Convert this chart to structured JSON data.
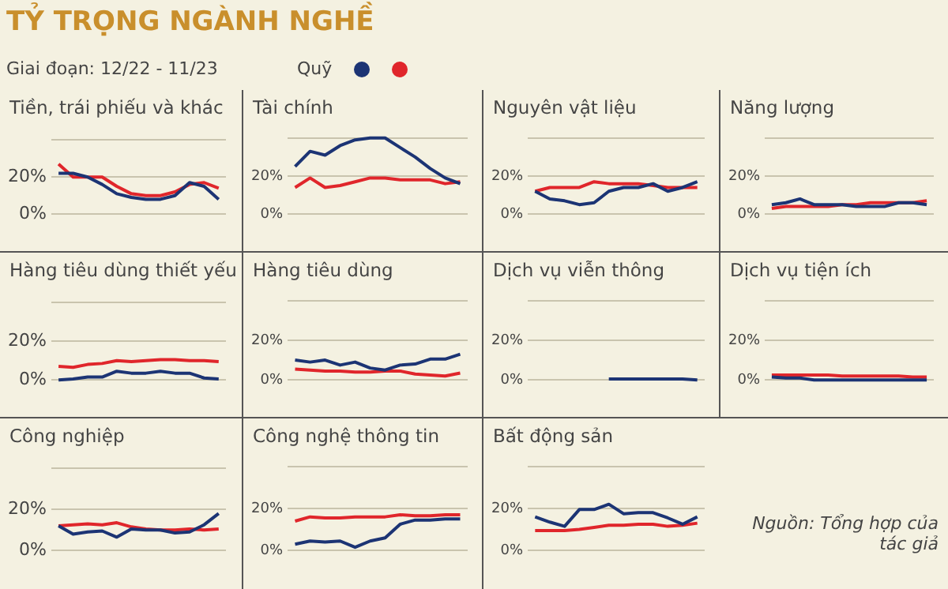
{
  "chart_data": [
    {
      "type": "other",
      "title": "TỶ TRỌNG NGÀNH NGHỀ",
      "subtitle": "Giai đoạn: 12/22 - 11/23"
    },
    {
      "type": "line",
      "title": "Tiền, trái phiếu và khác",
      "legend_title": "Quỹ",
      "categories": [
        null,
        null,
        null,
        null,
        null,
        null,
        null,
        null,
        null,
        null,
        null,
        null
      ],
      "ylim": [
        0,
        40
      ],
      "yticks": [
        {
          "value": 0,
          "label": "0%"
        },
        {
          "value": 20,
          "label": "20%"
        },
        {
          "value": 40,
          "label": null
        }
      ],
      "grid": "y",
      "series": [
        {
          "color": "#1c3474",
          "values": [
            22,
            22,
            20,
            16,
            11,
            9,
            8,
            8,
            10,
            17,
            15,
            8
          ]
        },
        {
          "color": "#e0262b",
          "values": [
            27,
            20,
            20,
            20,
            15,
            11,
            10,
            10,
            12,
            16,
            17,
            14
          ]
        }
      ]
    },
    {
      "type": "line",
      "title": "Tài chính",
      "categories": [
        null,
        null,
        null,
        null,
        null,
        null,
        null,
        null,
        null,
        null,
        null,
        null
      ],
      "ylim": [
        0,
        40
      ],
      "yticks": [
        {
          "value": 0,
          "label": "0%"
        },
        {
          "value": 20,
          "label": "20%"
        },
        {
          "value": 40,
          "label": null
        }
      ],
      "grid": "y",
      "series": [
        {
          "color": "#1c3474",
          "values": [
            25,
            33,
            31,
            36,
            39,
            40,
            40,
            35,
            30,
            24,
            19,
            16
          ]
        },
        {
          "color": "#e0262b",
          "values": [
            14,
            19,
            14,
            15,
            17,
            19,
            19,
            18,
            18,
            18,
            16,
            17
          ]
        }
      ]
    },
    {
      "type": "line",
      "title": "Nguyên vật liệu",
      "categories": [
        null,
        null,
        null,
        null,
        null,
        null,
        null,
        null,
        null,
        null,
        null,
        null
      ],
      "ylim": [
        0,
        40
      ],
      "yticks": [
        {
          "value": 0,
          "label": "0%"
        },
        {
          "value": 20,
          "label": "20%"
        },
        {
          "value": 40,
          "label": null
        }
      ],
      "grid": "y",
      "series": [
        {
          "color": "#1c3474",
          "values": [
            12,
            8,
            7,
            5,
            6,
            12,
            14,
            14,
            16,
            12,
            14,
            17
          ]
        },
        {
          "color": "#e0262b",
          "values": [
            12,
            14,
            14,
            14,
            17,
            16,
            16,
            16,
            15,
            14,
            14,
            14
          ]
        }
      ]
    },
    {
      "type": "line",
      "title": "Năng lượng",
      "categories": [
        null,
        null,
        null,
        null,
        null,
        null,
        null,
        null,
        null,
        null,
        null,
        null
      ],
      "ylim": [
        0,
        40
      ],
      "yticks": [
        {
          "value": 0,
          "label": "0%"
        },
        {
          "value": 20,
          "label": "20%"
        },
        {
          "value": 40,
          "label": null
        }
      ],
      "grid": "y",
      "series": [
        {
          "color": "#1c3474",
          "values": [
            5,
            6,
            8,
            5,
            5,
            5,
            4,
            4,
            4,
            6,
            6,
            5
          ]
        },
        {
          "color": "#e0262b",
          "values": [
            3,
            4,
            4,
            4,
            4,
            5,
            5,
            6,
            6,
            6,
            6,
            7
          ]
        }
      ]
    },
    {
      "type": "line",
      "title": "Hàng tiêu dùng thiết yếu",
      "categories": [
        null,
        null,
        null,
        null,
        null,
        null,
        null,
        null,
        null,
        null,
        null,
        null
      ],
      "ylim": [
        0,
        40
      ],
      "yticks": [
        {
          "value": 0,
          "label": "0%"
        },
        {
          "value": 20,
          "label": "20%"
        },
        {
          "value": 40,
          "label": null
        }
      ],
      "grid": "y",
      "series": [
        {
          "color": "#1c3474",
          "values": [
            0,
            0.5,
            1.5,
            1.5,
            4.5,
            3.5,
            3.5,
            4.5,
            3.5,
            3.5,
            1,
            0.5
          ]
        },
        {
          "color": "#e0262b",
          "values": [
            7,
            6.5,
            8,
            8.5,
            10,
            9.5,
            10,
            10.5,
            10.5,
            10,
            10,
            9.5
          ]
        }
      ]
    },
    {
      "type": "line",
      "title": "Hàng tiêu dùng",
      "categories": [
        null,
        null,
        null,
        null,
        null,
        null,
        null,
        null,
        null,
        null,
        null,
        null
      ],
      "ylim": [
        0,
        40
      ],
      "yticks": [
        {
          "value": 0,
          "label": "0%"
        },
        {
          "value": 20,
          "label": "20%"
        },
        {
          "value": 40,
          "label": null
        }
      ],
      "grid": "y",
      "series": [
        {
          "color": "#1c3474",
          "values": [
            10,
            9,
            10,
            7.5,
            9,
            6,
            5,
            7.5,
            8,
            10.5,
            10.5,
            13
          ]
        },
        {
          "color": "#e0262b",
          "values": [
            5.5,
            5,
            4.5,
            4.5,
            4,
            4,
            4.5,
            4.5,
            3,
            2.5,
            2,
            3.5
          ]
        }
      ]
    },
    {
      "type": "line",
      "title": "Dịch vụ viễn thông",
      "categories": [
        null,
        null,
        null,
        null,
        null,
        null,
        null,
        null,
        null,
        null,
        null,
        null
      ],
      "ylim": [
        0,
        40
      ],
      "yticks": [
        {
          "value": 0,
          "label": "0%"
        },
        {
          "value": 20,
          "label": "20%"
        },
        {
          "value": 40,
          "label": null
        }
      ],
      "grid": "y",
      "series": [
        {
          "color": "#1c3474",
          "values": [
            null,
            null,
            null,
            null,
            null,
            0.5,
            0.5,
            0.5,
            0.5,
            0.5,
            0.5,
            0
          ]
        }
      ]
    },
    {
      "type": "line",
      "title": "Dịch vụ tiện ích",
      "categories": [
        null,
        null,
        null,
        null,
        null,
        null,
        null,
        null,
        null,
        null,
        null,
        null
      ],
      "ylim": [
        0,
        40
      ],
      "yticks": [
        {
          "value": 0,
          "label": "0%"
        },
        {
          "value": 20,
          "label": "20%"
        },
        {
          "value": 40,
          "label": null
        }
      ],
      "grid": "y",
      "series": [
        {
          "color": "#1c3474",
          "values": [
            1.5,
            1,
            1,
            0,
            0,
            0,
            0,
            0,
            0,
            0,
            0,
            0
          ]
        },
        {
          "color": "#e0262b",
          "values": [
            2.5,
            2.5,
            2.5,
            2.5,
            2.5,
            2,
            2,
            2,
            2,
            2,
            1.5,
            1.5
          ]
        }
      ]
    },
    {
      "type": "line",
      "title": "Công nghiệp",
      "categories": [
        null,
        null,
        null,
        null,
        null,
        null,
        null,
        null,
        null,
        null,
        null,
        null
      ],
      "ylim": [
        0,
        40
      ],
      "yticks": [
        {
          "value": 0,
          "label": "0%"
        },
        {
          "value": 20,
          "label": "20%"
        },
        {
          "value": 40,
          "label": null
        }
      ],
      "grid": "y",
      "series": [
        {
          "color": "#1c3474",
          "values": [
            12,
            8,
            9,
            9.5,
            6.5,
            10.5,
            10,
            10,
            8.5,
            9,
            12.5,
            18
          ]
        },
        {
          "color": "#e0262b",
          "values": [
            12,
            12.5,
            13,
            12.5,
            13.5,
            11.5,
            10.5,
            10,
            10,
            10.5,
            10,
            10.5
          ]
        }
      ]
    },
    {
      "type": "line",
      "title": "Công nghệ thông tin",
      "categories": [
        null,
        null,
        null,
        null,
        null,
        null,
        null,
        null,
        null,
        null,
        null,
        null
      ],
      "ylim": [
        0,
        40
      ],
      "yticks": [
        {
          "value": 0,
          "label": "0%"
        },
        {
          "value": 20,
          "label": "20%"
        },
        {
          "value": 40,
          "label": null
        }
      ],
      "grid": "y",
      "series": [
        {
          "color": "#1c3474",
          "values": [
            3,
            4.5,
            4,
            4.5,
            1.5,
            4.5,
            6,
            12.5,
            14.5,
            14.5,
            15,
            15
          ]
        },
        {
          "color": "#e0262b",
          "values": [
            14,
            16,
            15.5,
            15.5,
            16,
            16,
            16,
            17,
            16.5,
            16.5,
            17,
            17
          ]
        }
      ]
    },
    {
      "type": "line",
      "title": "Bất động sản",
      "annotations": [
        "Nguồn: Tổng hợp của tác giả"
      ],
      "categories": [
        null,
        null,
        null,
        null,
        null,
        null,
        null,
        null,
        null,
        null,
        null,
        null
      ],
      "ylim": [
        0,
        40
      ],
      "yticks": [
        {
          "value": 0,
          "label": "0%"
        },
        {
          "value": 20,
          "label": "20%"
        },
        {
          "value": 40,
          "label": null
        }
      ],
      "grid": "y",
      "series": [
        {
          "color": "#1c3474",
          "values": [
            16,
            13.5,
            11.5,
            19.5,
            19.5,
            22,
            17.5,
            18,
            18,
            15.5,
            12.5,
            16
          ]
        },
        {
          "color": "#e0262b",
          "values": [
            9.5,
            9.5,
            9.5,
            10,
            11,
            12,
            12,
            12.5,
            12.5,
            11.5,
            12,
            13
          ]
        }
      ]
    }
  ]
}
